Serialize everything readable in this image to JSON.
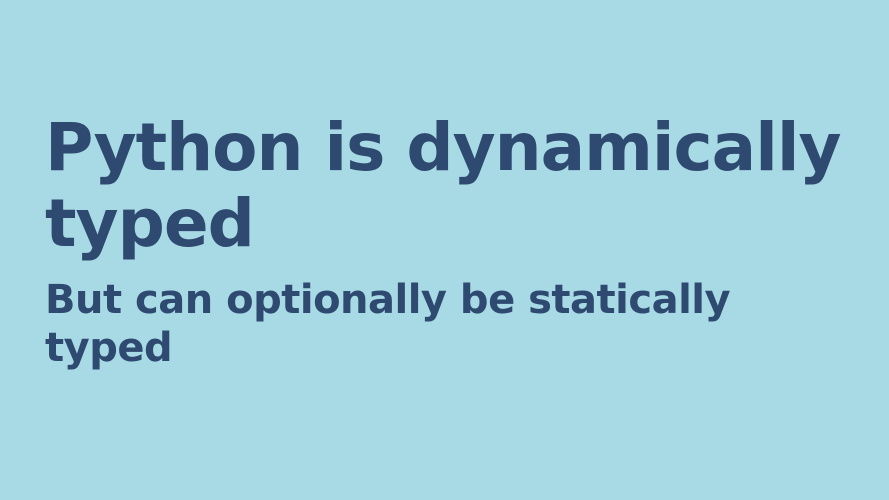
{
  "slide": {
    "title": "Python is dynamically typed",
    "subtitle": "But can optionally be statically typed",
    "colors": {
      "background": "#a8dae5",
      "text": "#2f4a70"
    }
  }
}
